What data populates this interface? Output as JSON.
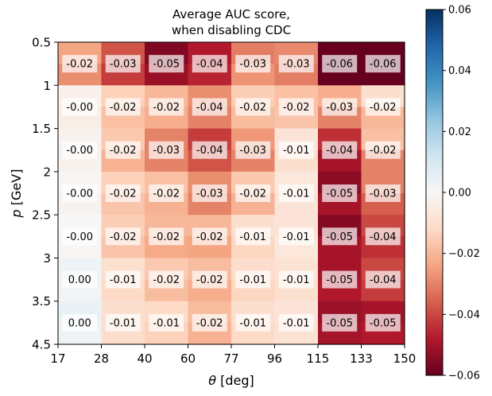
{
  "chart_data": {
    "type": "heatmap",
    "title_line1": "Average AUC score,",
    "title_line2": "when disabling CDC",
    "xlabel_symbol": "θ",
    "xlabel_unit": " [deg]",
    "ylabel_symbol": "p",
    "ylabel_unit": " [GeV]",
    "x_ticks": [
      "17",
      "28",
      "40",
      "60",
      "77",
      "96",
      "115",
      "133",
      "150"
    ],
    "y_ticks": [
      "0.5",
      "1",
      "1.5",
      "2",
      "2.5",
      "3",
      "3.5",
      "4.5"
    ],
    "colorbar_ticks": [
      "0.06",
      "0.04",
      "0.02",
      "0.00",
      "−0.02",
      "−0.04",
      "−0.06"
    ],
    "colorbar_values": [
      0.06,
      0.04,
      0.02,
      0.0,
      -0.02,
      -0.04,
      -0.06
    ],
    "color_range": [
      -0.06,
      0.06
    ],
    "colormap": "RdBu",
    "fine_grid": [
      [
        -0.024,
        -0.038,
        -0.056,
        -0.048,
        -0.031,
        -0.029,
        -0.075,
        -0.072
      ],
      [
        -0.028,
        -0.042,
        -0.052,
        -0.046,
        -0.027,
        -0.031,
        -0.064,
        -0.06
      ],
      [
        -0.003,
        -0.014,
        -0.02,
        -0.028,
        -0.015,
        -0.018,
        -0.022,
        -0.01
      ],
      [
        -0.004,
        -0.018,
        -0.022,
        -0.03,
        -0.019,
        -0.017,
        -0.03,
        -0.02
      ],
      [
        -0.002,
        -0.016,
        -0.03,
        -0.042,
        -0.026,
        -0.008,
        -0.044,
        -0.018
      ],
      [
        -0.002,
        -0.021,
        -0.03,
        -0.038,
        -0.03,
        -0.01,
        -0.05,
        -0.03
      ],
      [
        -0.001,
        -0.014,
        -0.018,
        -0.028,
        -0.016,
        -0.007,
        -0.054,
        -0.03
      ],
      [
        -0.002,
        -0.017,
        -0.021,
        -0.03,
        -0.021,
        -0.008,
        -0.05,
        -0.036
      ],
      [
        0.0,
        -0.015,
        -0.02,
        -0.02,
        -0.01,
        -0.008,
        -0.055,
        -0.04
      ],
      [
        -0.001,
        -0.017,
        -0.023,
        -0.024,
        -0.013,
        -0.007,
        -0.05,
        -0.044
      ],
      [
        0.003,
        -0.01,
        -0.016,
        -0.019,
        -0.011,
        -0.009,
        -0.05,
        -0.04
      ],
      [
        0.002,
        -0.012,
        -0.019,
        -0.022,
        -0.013,
        -0.01,
        -0.048,
        -0.042
      ],
      [
        0.004,
        -0.01,
        -0.012,
        -0.019,
        -0.01,
        -0.008,
        -0.052,
        -0.05
      ],
      [
        0.003,
        -0.011,
        -0.014,
        -0.021,
        -0.012,
        -0.009,
        -0.05,
        -0.048
      ]
    ],
    "cell_labels": [
      [
        "-0.02",
        "-0.03",
        "-0.05",
        "-0.04",
        "-0.03",
        "-0.03",
        "-0.06",
        "-0.06"
      ],
      [
        "-0.00",
        "-0.02",
        "-0.02",
        "-0.04",
        "-0.02",
        "-0.02",
        "-0.03",
        "-0.02"
      ],
      [
        "-0.00",
        "-0.02",
        "-0.03",
        "-0.04",
        "-0.03",
        "-0.01",
        "-0.04",
        "-0.02"
      ],
      [
        "-0.00",
        "-0.02",
        "-0.02",
        "-0.03",
        "-0.02",
        "-0.01",
        "-0.05",
        "-0.03"
      ],
      [
        "-0.00",
        "-0.02",
        "-0.02",
        "-0.02",
        "-0.01",
        "-0.01",
        "-0.05",
        "-0.04"
      ],
      [
        "0.00",
        "-0.01",
        "-0.02",
        "-0.02",
        "-0.01",
        "-0.01",
        "-0.05",
        "-0.04"
      ],
      [
        "0.00",
        "-0.01",
        "-0.01",
        "-0.02",
        "-0.01",
        "-0.01",
        "-0.05",
        "-0.05"
      ]
    ]
  }
}
